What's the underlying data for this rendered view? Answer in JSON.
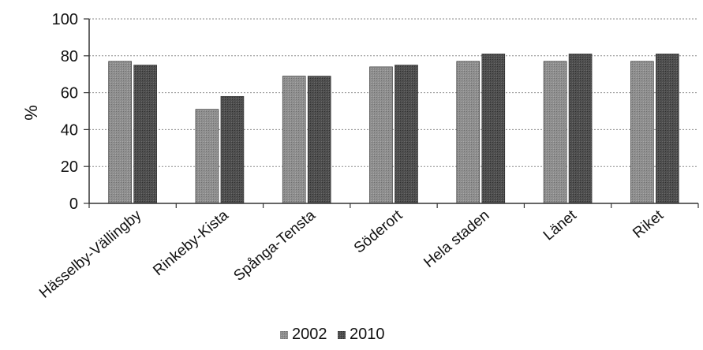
{
  "chart_data": {
    "type": "bar",
    "categories": [
      "Hässelby-Vällingby",
      "Rinkeby-Kista",
      "Spånga-Tensta",
      "Söderort",
      "Hela staden",
      "Länet",
      "Riket"
    ],
    "series": [
      {
        "name": "2002",
        "values": [
          77,
          51,
          69,
          74,
          77,
          77,
          77
        ]
      },
      {
        "name": "2010",
        "values": [
          75,
          58,
          69,
          75,
          81,
          81,
          81
        ]
      }
    ],
    "title": "",
    "xlabel": "",
    "ylabel": "%",
    "ylim": [
      0,
      100
    ],
    "yticks": [
      0,
      20,
      40,
      60,
      80,
      100
    ],
    "grid": true,
    "legend_position": "bottom",
    "colors": {
      "2002": "#8f8f8f",
      "2010": "#4f4f4f"
    }
  }
}
